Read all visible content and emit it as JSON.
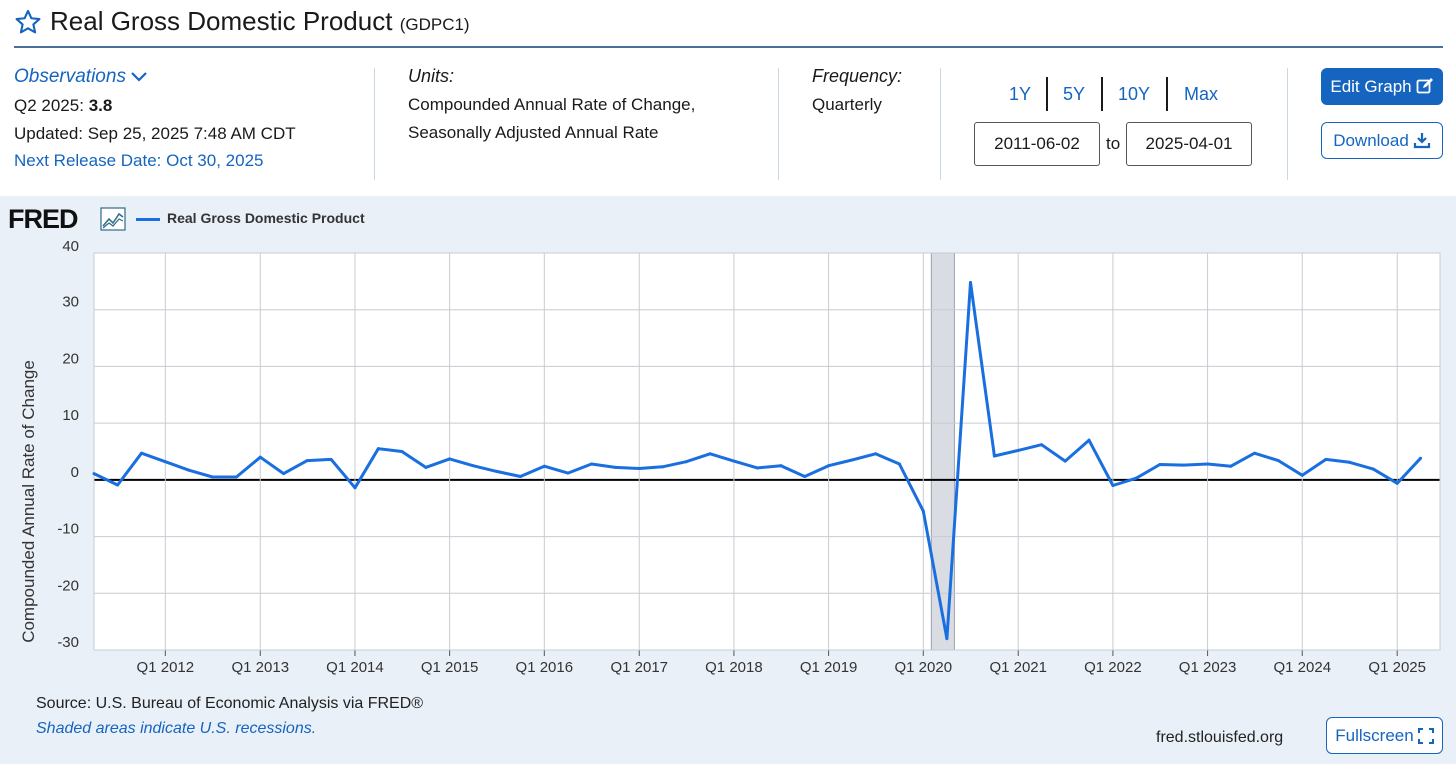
{
  "header": {
    "title": "Real Gross Domestic Product",
    "series_id": "(GDPC1)"
  },
  "observations": {
    "label": "Observations",
    "period": "Q2 2025:",
    "value": "3.8",
    "updated": "Updated: Sep 25, 2025 7:48 AM CDT",
    "next_release": "Next Release Date: Oct 30, 2025"
  },
  "units": {
    "label": "Units:",
    "line1": "Compounded Annual Rate of Change,",
    "line2": "Seasonally Adjusted Annual Rate"
  },
  "frequency": {
    "label": "Frequency:",
    "value": "Quarterly"
  },
  "range": {
    "buttons": [
      "1Y",
      "5Y",
      "10Y",
      "Max"
    ],
    "start_date": "2011-06-02",
    "to_label": "to",
    "end_date": "2025-04-01"
  },
  "actions": {
    "edit_graph": "Edit Graph",
    "download": "Download",
    "fullscreen": "Fullscreen"
  },
  "footer": {
    "source": "Source: U.S. Bureau of Economic Analysis via FRED®",
    "recession_note": "Shaded areas indicate U.S. recessions.",
    "url": "fred.stlouisfed.org"
  },
  "logo": {
    "text": "FRED"
  },
  "colors": {
    "accent": "#1565c0",
    "series": "#1a6fe0",
    "chart_bg": "#e9f0f8",
    "recession_shade": "#d9dde3"
  },
  "chart_data": {
    "type": "line",
    "ylabel": "Compounded Annual Rate of Change",
    "ylim": [
      -30,
      40
    ],
    "y_ticks": [
      40,
      30,
      20,
      10,
      0,
      -10,
      -20,
      -30
    ],
    "grid": true,
    "legend": "top-left",
    "x_tick_labels": [
      "Q1 2012",
      "Q1 2013",
      "Q1 2014",
      "Q1 2015",
      "Q1 2016",
      "Q1 2017",
      "Q1 2018",
      "Q1 2019",
      "Q1 2020",
      "Q1 2021",
      "Q1 2022",
      "Q1 2023",
      "Q1 2024",
      "Q1 2025"
    ],
    "recession": {
      "start": "2020-02-01",
      "end": "2020-04-30"
    },
    "series": [
      {
        "name": "Real Gross Domestic Product",
        "x": [
          "2011-04-01",
          "2011-07-01",
          "2011-10-01",
          "2012-01-01",
          "2012-04-01",
          "2012-07-01",
          "2012-10-01",
          "2013-01-01",
          "2013-04-01",
          "2013-07-01",
          "2013-10-01",
          "2014-01-01",
          "2014-04-01",
          "2014-07-01",
          "2014-10-01",
          "2015-01-01",
          "2015-04-01",
          "2015-07-01",
          "2015-10-01",
          "2016-01-01",
          "2016-04-01",
          "2016-07-01",
          "2016-10-01",
          "2017-01-01",
          "2017-04-01",
          "2017-07-01",
          "2017-10-01",
          "2018-01-01",
          "2018-04-01",
          "2018-07-01",
          "2018-10-01",
          "2019-01-01",
          "2019-04-01",
          "2019-07-01",
          "2019-10-01",
          "2020-01-01",
          "2020-04-01",
          "2020-07-01",
          "2020-10-01",
          "2021-01-01",
          "2021-04-01",
          "2021-07-01",
          "2021-10-01",
          "2022-01-01",
          "2022-04-01",
          "2022-07-01",
          "2022-10-01",
          "2023-01-01",
          "2023-04-01",
          "2023-07-01",
          "2023-10-01",
          "2024-01-01",
          "2024-04-01",
          "2024-07-01",
          "2024-10-01",
          "2025-01-01",
          "2025-04-01"
        ],
        "values": [
          1.1,
          -0.9,
          4.7,
          3.2,
          1.7,
          0.5,
          0.5,
          4.0,
          1.1,
          3.4,
          3.6,
          -1.4,
          5.5,
          5.0,
          2.2,
          3.7,
          2.5,
          1.5,
          0.6,
          2.4,
          1.2,
          2.8,
          2.2,
          2.0,
          2.3,
          3.2,
          4.6,
          3.3,
          2.1,
          2.5,
          0.6,
          2.5,
          3.5,
          4.6,
          2.8,
          -5.5,
          -28.0,
          34.8,
          4.2,
          5.2,
          6.2,
          3.3,
          7.0,
          -1.0,
          0.3,
          2.7,
          2.6,
          2.8,
          2.4,
          4.7,
          3.4,
          0.8,
          3.6,
          3.1,
          1.9,
          -0.6,
          3.8
        ]
      }
    ]
  }
}
